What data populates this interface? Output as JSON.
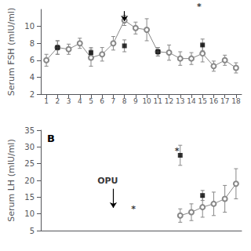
{
  "chart_data": [
    {
      "type": "line",
      "ylabel": "Serum FSH (mIU/ml)",
      "xlim": [
        0.5,
        18.5
      ],
      "xticks": [
        1,
        2,
        3,
        4,
        5,
        6,
        7,
        8,
        9,
        10,
        11,
        12,
        13,
        14,
        15,
        16,
        17,
        18
      ],
      "ylim": [
        2,
        12
      ],
      "yticks": [
        2,
        4,
        6,
        8,
        10
      ],
      "grid": false,
      "series": [
        {
          "type": "line",
          "color": "#888888",
          "marker": "circle",
          "line_style": "solid",
          "x": [
            1,
            2,
            3,
            4,
            5,
            6,
            7,
            8,
            9,
            10,
            11,
            12,
            13,
            14,
            15,
            16,
            17,
            18
          ],
          "values": [
            6.0,
            7.5,
            7.3,
            8.0,
            6.3,
            6.7,
            8.0,
            10.7,
            9.8,
            9.6,
            7.0,
            6.9,
            6.2,
            6.2,
            6.8,
            5.3,
            6.0,
            5.1
          ],
          "errors": [
            0.7,
            0.8,
            0.6,
            0.6,
            1.0,
            0.8,
            0.8,
            0.6,
            0.7,
            1.3,
            0.5,
            0.9,
            0.8,
            0.7,
            1.0,
            0.6,
            0.6,
            0.6
          ]
        },
        {
          "type": "scatter",
          "color": "#000000",
          "marker": "square",
          "x": [
            2,
            5,
            8,
            11,
            15
          ],
          "values": [
            7.5,
            6.9,
            7.7,
            7.0,
            7.8
          ],
          "errors": [
            0.8,
            0.6,
            0.7,
            0.5,
            0.7
          ]
        }
      ],
      "annotations": [
        {
          "text": "*",
          "x": 14.7,
          "y": 11.8
        }
      ],
      "arrows": [
        {
          "x": 8,
          "y_from": 11.8,
          "y_to": 10.6
        }
      ]
    },
    {
      "type": "line",
      "label": "B",
      "ylabel": "Serum LH (mIU/ml)",
      "xlim": [
        0.5,
        18.5
      ],
      "ylim": [
        5,
        35
      ],
      "yticks": [
        5,
        10,
        15,
        20,
        25,
        30,
        35
      ],
      "tick_labels": "y",
      "grid": false,
      "series": [
        {
          "type": "line",
          "color": "#888888",
          "marker": "circle",
          "line_style": "solid",
          "x": [
            13,
            14,
            15,
            16,
            17,
            18
          ],
          "values": [
            9.5,
            10.5,
            12.0,
            13.0,
            14.5,
            19.0
          ],
          "errors": [
            2.0,
            2.5,
            3.0,
            3.5,
            4.0,
            4.5
          ]
        },
        {
          "type": "scatter",
          "color": "#000000",
          "marker": "square",
          "x": [
            13,
            15
          ],
          "values": [
            27.5,
            15.5
          ],
          "errors": [
            3.0,
            1.5
          ]
        }
      ],
      "annotations": [
        {
          "text": "OPU",
          "x": 6.5,
          "y": 18.5
        },
        {
          "text": "*",
          "x": 8.8,
          "y": 10.2
        },
        {
          "text": "*",
          "x": 12.7,
          "y": 27.5
        }
      ],
      "arrows": [
        {
          "x": 7,
          "y_from": 17.5,
          "y_to": 11.8
        }
      ]
    }
  ]
}
